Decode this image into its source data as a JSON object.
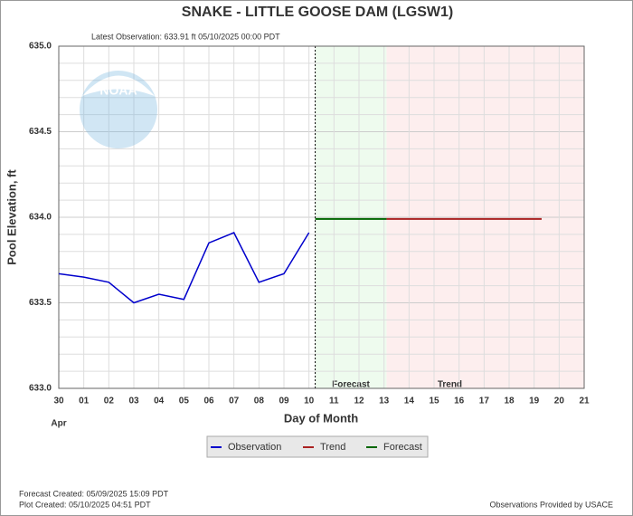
{
  "chart_data": {
    "type": "line",
    "title": "SNAKE - LITTLE GOOSE DAM  (LGSW1)",
    "subtitle": "Latest Observation: 633.91 ft 05/10/2025 00:00 PDT",
    "y_label": "Pool Elevation, ft",
    "x_label": "Day of Month",
    "x_sublabel": "Apr",
    "logo_text": "NOAA",
    "xlim": [
      0,
      21
    ],
    "ylim": [
      633,
      635
    ],
    "xticks": [
      {
        "value": 0,
        "label": "30"
      },
      {
        "value": 1,
        "label": "01"
      },
      {
        "value": 2,
        "label": "02"
      },
      {
        "value": 3,
        "label": "03"
      },
      {
        "value": 4,
        "label": "04"
      },
      {
        "value": 5,
        "label": "05"
      },
      {
        "value": 6,
        "label": "06"
      },
      {
        "value": 7,
        "label": "07"
      },
      {
        "value": 8,
        "label": "08"
      },
      {
        "value": 9,
        "label": "09"
      },
      {
        "value": 10,
        "label": "10"
      },
      {
        "value": 11,
        "label": "11"
      },
      {
        "value": 12,
        "label": "12"
      },
      {
        "value": 13,
        "label": "13"
      },
      {
        "value": 14,
        "label": "14"
      },
      {
        "value": 15,
        "label": "15"
      },
      {
        "value": 16,
        "label": "16"
      },
      {
        "value": 17,
        "label": "17"
      },
      {
        "value": 18,
        "label": "18"
      },
      {
        "value": 19,
        "label": "19"
      },
      {
        "value": 20,
        "label": "20"
      },
      {
        "value": 21,
        "label": "21"
      }
    ],
    "yticks": [
      {
        "value": 633,
        "label": "633.0"
      },
      633.5,
      {
        "value": 634,
        "label": "634.0"
      },
      634.5,
      {
        "value": 635,
        "label": "635.0"
      }
    ],
    "minor_yticks": [
      633.1,
      633.2,
      633.3,
      633.4,
      633.6,
      633.7,
      633.8,
      633.9,
      634.1,
      634.2,
      634.3,
      634.4,
      634.6,
      634.7,
      634.8,
      634.9
    ],
    "grid": true,
    "regions": [
      {
        "name": "Forecast",
        "color": "#eefbee",
        "x": [
          10.25,
          13.1
        ]
      },
      {
        "name": "Trend",
        "color": "#fdeeee",
        "x": [
          13.1,
          21
        ]
      }
    ],
    "series": [
      {
        "name": "Observation",
        "color": "#0000cc",
        "x": [
          0,
          1,
          2,
          3,
          4,
          5,
          6,
          7,
          8,
          9,
          10
        ],
        "values": [
          633.67,
          633.65,
          633.62,
          633.5,
          633.55,
          633.52,
          633.85,
          633.91,
          633.62,
          633.67,
          633.91
        ]
      },
      {
        "name": "Trend",
        "color": "#aa2222",
        "x": [
          13.1,
          19.3
        ],
        "values": [
          633.99,
          633.99
        ]
      },
      {
        "name": "Forecast",
        "color": "#006600",
        "x": [
          10.25,
          13.1
        ],
        "values": [
          633.99,
          633.99
        ]
      }
    ],
    "footer": [
      "Forecast Created: 05/09/2025 15:09 PDT",
      "Plot Created: 05/10/2025 04:51 PDT"
    ],
    "credit": "Observations Provided by USACE"
  }
}
